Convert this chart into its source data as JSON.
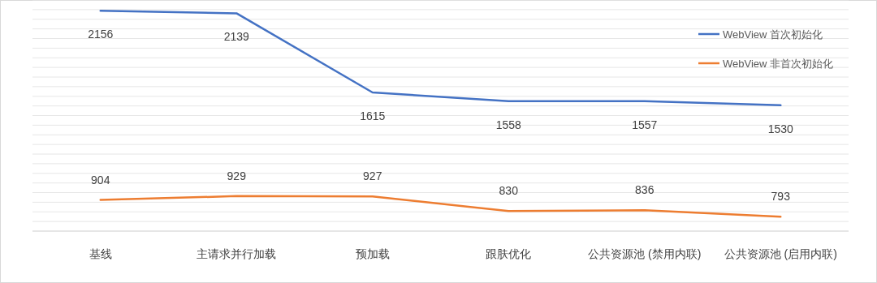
{
  "chart_data": {
    "type": "line",
    "categories": [
      "基线",
      "主请求并行加载",
      "预加载",
      "跟肤优化",
      "公共资源池 (禁用内联)",
      "公共资源池 (启用内联)"
    ],
    "series": [
      {
        "name": "WebView 首次初始化",
        "color": "#4472c4",
        "values": [
          2156,
          2139,
          1615,
          1558,
          1557,
          1530
        ]
      },
      {
        "name": "WebView 非首次初始化",
        "color": "#ed7d31",
        "values": [
          904,
          929,
          927,
          830,
          836,
          793
        ]
      }
    ],
    "data_labels": true,
    "grid": "y",
    "legend": "top right",
    "marker": "none",
    "line_style": "solid"
  }
}
